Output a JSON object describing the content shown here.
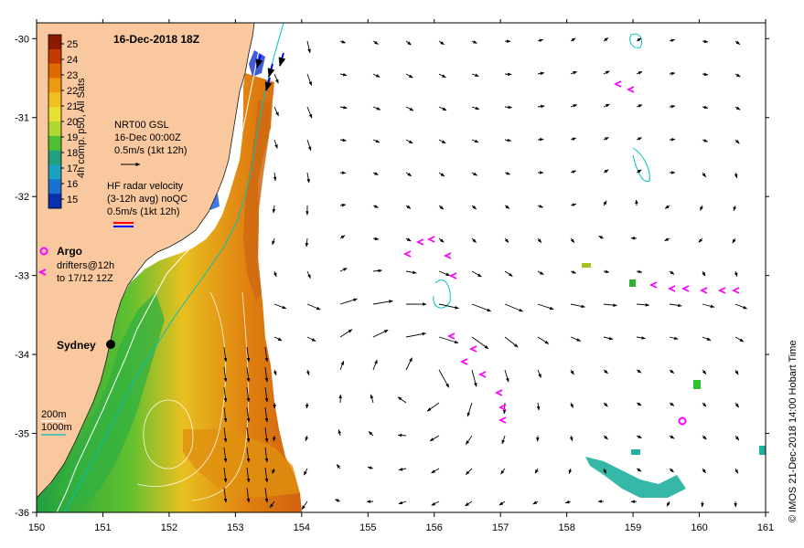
{
  "title": "16-Dec-2018 18Z",
  "credit": "© IMOS 21-Dec-2018 14:00 Hobart Time",
  "colorbar": {
    "label": "4h comp. p50, All Sats",
    "ticks": [
      "25",
      "24",
      "23",
      "22",
      "21",
      "20",
      "19",
      "18",
      "17",
      "16",
      "15"
    ],
    "colors": [
      "#8b1a00",
      "#c43a00",
      "#e06a00",
      "#ee9a10",
      "#f0c020",
      "#e8e030",
      "#b0d830",
      "#50c030",
      "#20a080",
      "#1aa0c0",
      "#1870d0",
      "#0830b0"
    ]
  },
  "axes": {
    "x_ticks": [
      "150",
      "151",
      "152",
      "153",
      "154",
      "155",
      "156",
      "157",
      "158",
      "159",
      "160",
      "161"
    ],
    "y_ticks": [
      "-30",
      "-31",
      "-32",
      "-33",
      "-34",
      "-35",
      "-36"
    ],
    "lon_range": [
      150,
      161
    ],
    "lat_range": [
      -36,
      -29.8
    ]
  },
  "legend": {
    "nrt_name": "NRT00 GSL",
    "nrt_time": "16-Dec 00:00Z",
    "nrt_scale": "0.5m/s (1kt 12h)",
    "hf_line1": "HF radar velocity",
    "hf_line2": "(3-12h avg) noQC",
    "hf_scale": "0.5m/s (1kt 12h)",
    "argo": "Argo",
    "drifters_line1": "drifters@12h",
    "drifters_line2": "to 17/12 12Z",
    "depth_200": "200m",
    "depth_1000": "1000m"
  },
  "places": [
    {
      "name": "Sydney",
      "lon": 151.2,
      "lat": -33.87
    }
  ],
  "colors": {
    "land": "#f9c89e",
    "frame": "#000000",
    "argo": "#ff00ff",
    "drifter": "#ff00ff",
    "hf_red": "#ff0000",
    "hf_blue": "#0000ff",
    "depth_200": "#ffffff",
    "depth_1000": "#00c0c0"
  }
}
